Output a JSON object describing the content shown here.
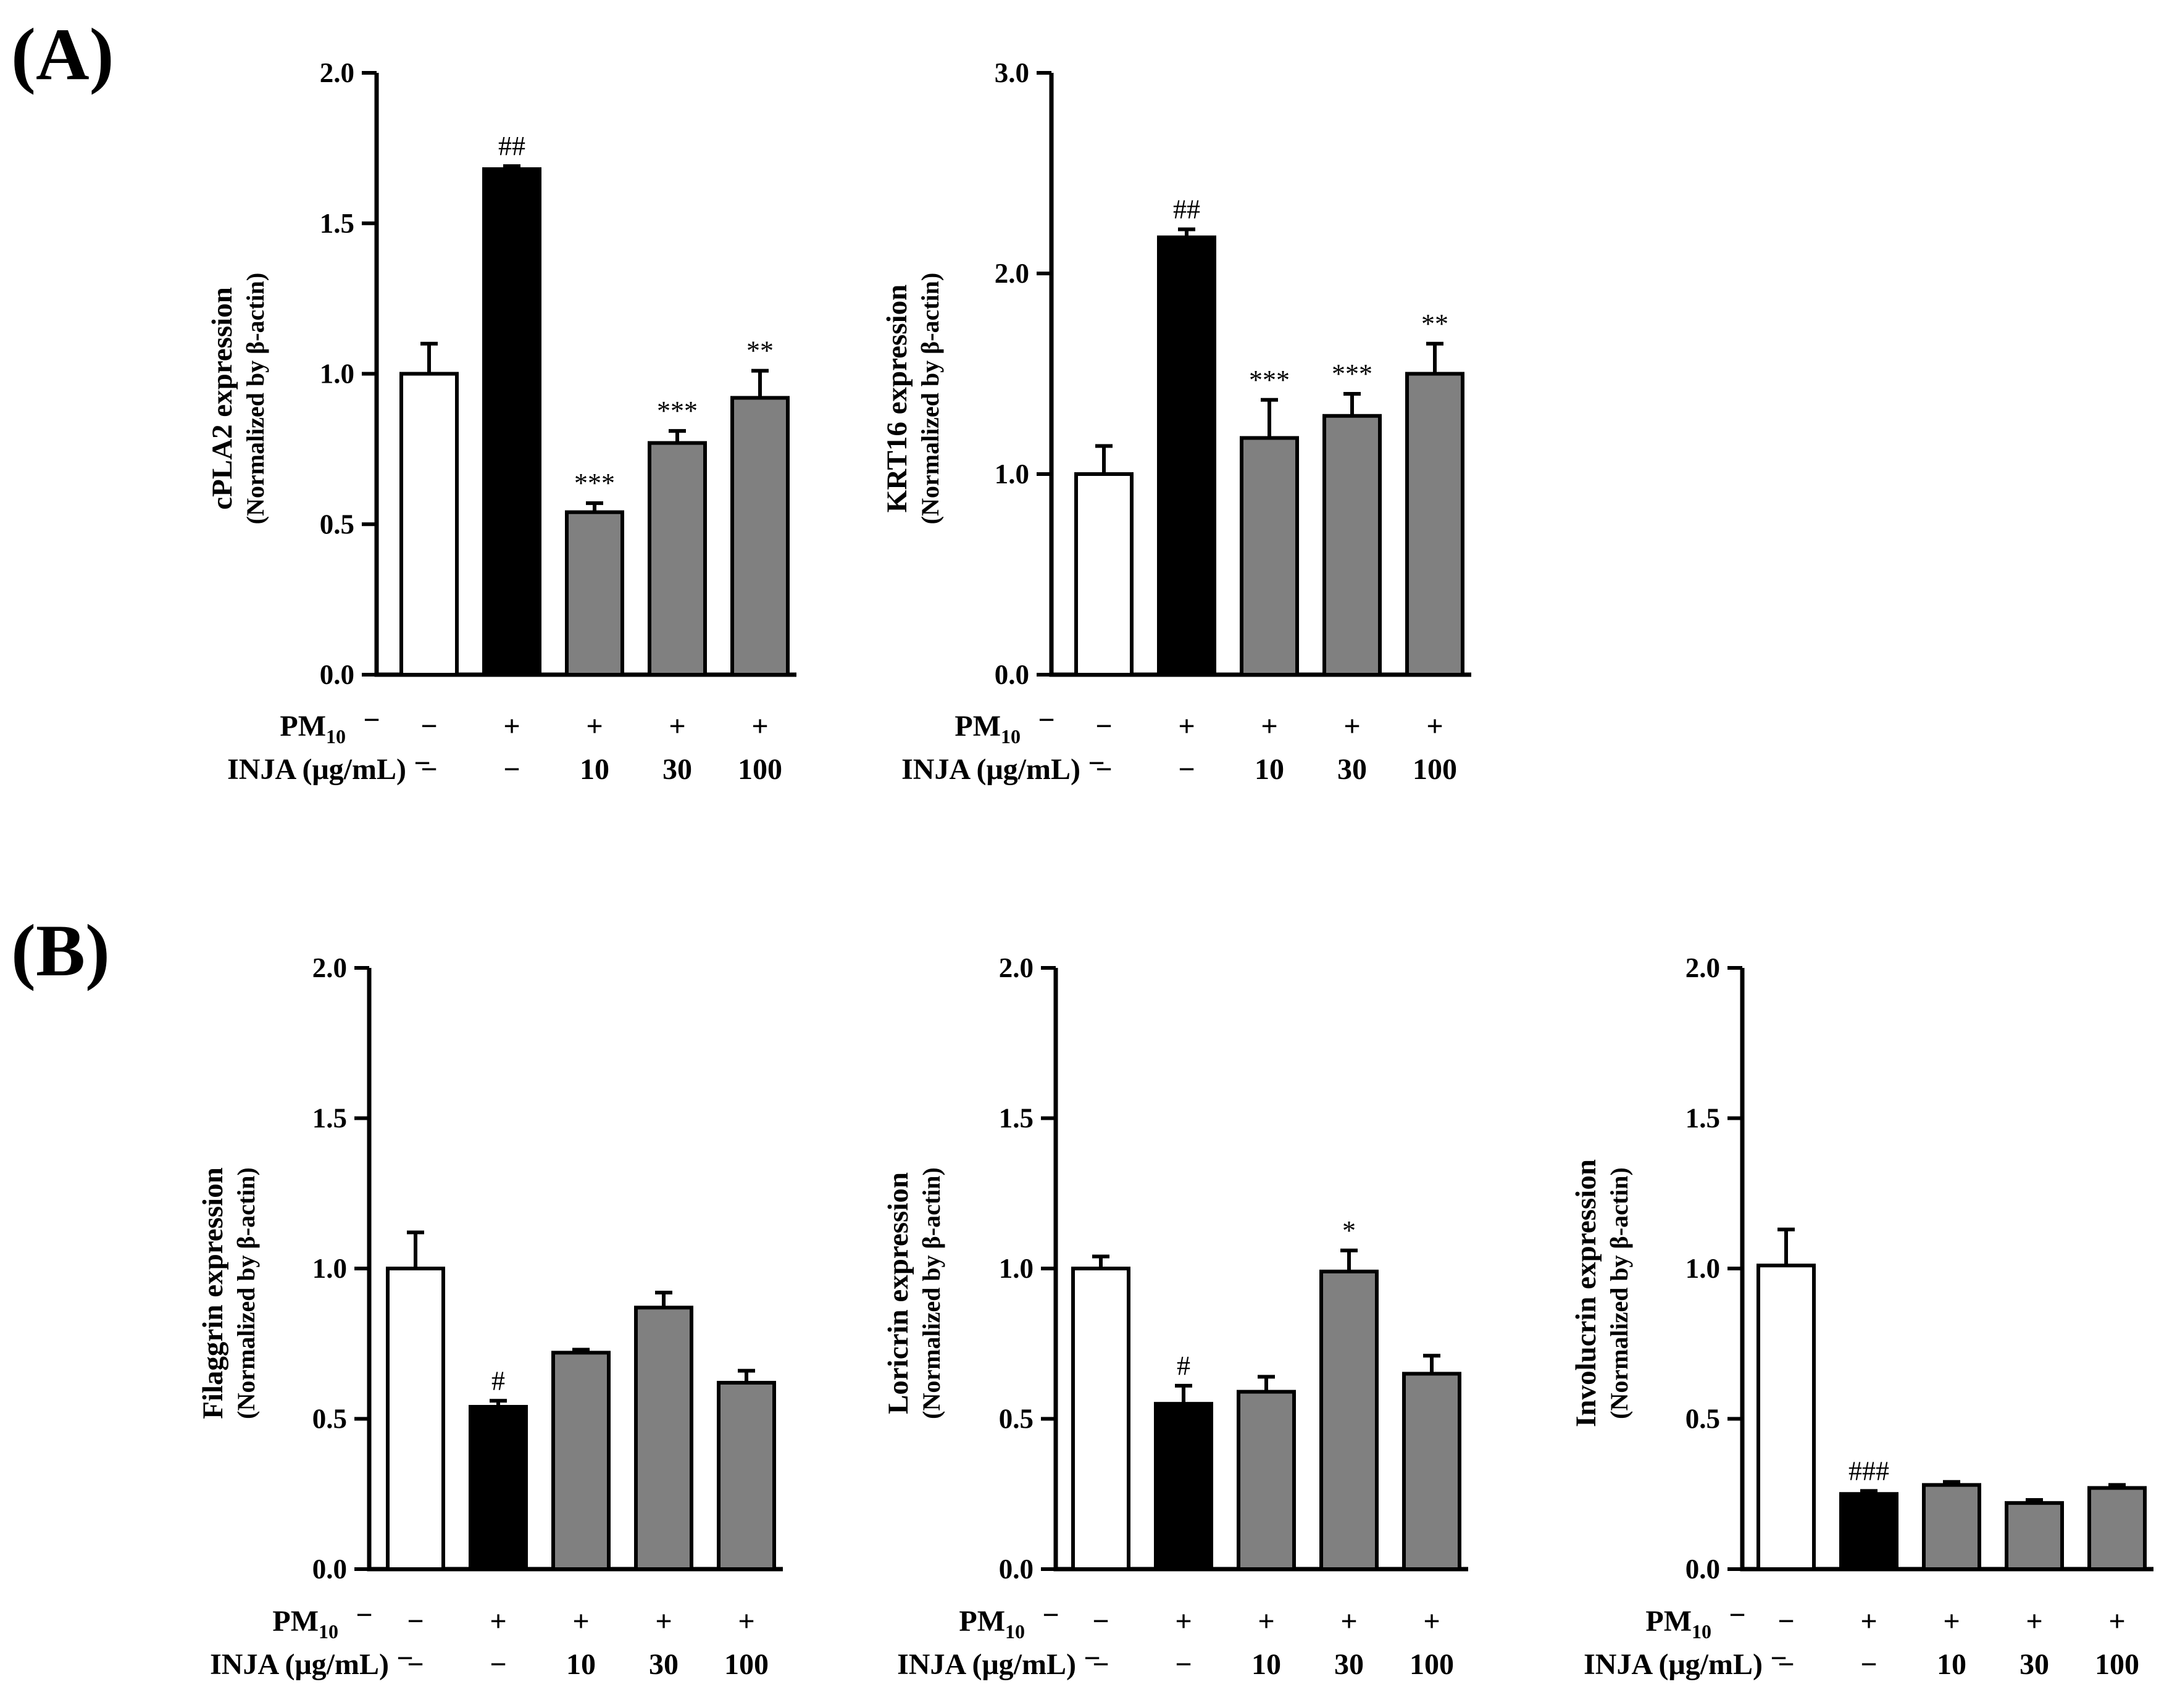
{
  "panels": [
    {
      "label": "(A)"
    },
    {
      "label": "(B)"
    }
  ],
  "conditions": {
    "pm_label": "PM",
    "pm_subscript": "10",
    "injа_label": "INJA (μg/mL)",
    "inja_label": "INJA (μg/mL)",
    "pm_values": [
      "−",
      "+",
      "+",
      "+",
      "+"
    ],
    "inja_values": [
      "−",
      "−",
      "10",
      "30",
      "100"
    ],
    "dash": "−"
  },
  "colors": {
    "control": "#ffffff",
    "pm_only": "#000000",
    "inja": "#808080",
    "axis": "#000000"
  },
  "chart_data": [
    {
      "type": "bar",
      "panel": "(A)",
      "title": "",
      "ylabel": "cPLA2  expression",
      "ylabel2": "(Normalized by β-actin)",
      "ylim": [
        0,
        2.0
      ],
      "yticks": [
        "0.0",
        "0.5",
        "1.0",
        "1.5",
        "2.0"
      ],
      "categories": [
        "control",
        "PM10",
        "PM10 + INJA 10",
        "PM10 + INJA 30",
        "PM10 + INJA 100"
      ],
      "values": [
        1.0,
        1.68,
        0.54,
        0.77,
        0.92
      ],
      "errors": [
        0.1,
        0.01,
        0.03,
        0.04,
        0.09
      ],
      "annotations": [
        "",
        "##",
        "***",
        "***",
        "**"
      ]
    },
    {
      "type": "bar",
      "panel": "(A)",
      "title": "",
      "ylabel": "KRT16  expression",
      "ylabel2": "(Normalized by β-actin)",
      "ylim": [
        0,
        3.0
      ],
      "yticks": [
        "0.0",
        "1.0",
        "2.0",
        "3.0"
      ],
      "categories": [
        "control",
        "PM10",
        "PM10 + INJA 10",
        "PM10 + INJA 30",
        "PM10 + INJA 100"
      ],
      "values": [
        1.0,
        2.18,
        1.18,
        1.29,
        1.5
      ],
      "errors": [
        0.14,
        0.04,
        0.19,
        0.11,
        0.15
      ],
      "annotations": [
        "",
        "##",
        "***",
        "***",
        "**"
      ]
    },
    {
      "type": "bar",
      "panel": "(B)",
      "title": "",
      "ylabel": "Filaggrin  expression",
      "ylabel2": "(Normalized by β-actin)",
      "ylim": [
        0,
        2.0
      ],
      "yticks": [
        "0.0",
        "0.5",
        "1.0",
        "1.5",
        "2.0"
      ],
      "categories": [
        "control",
        "PM10",
        "PM10 + INJA 10",
        "PM10 + INJA 30",
        "PM10 + INJA 100"
      ],
      "values": [
        1.0,
        0.54,
        0.72,
        0.87,
        0.62
      ],
      "errors": [
        0.12,
        0.02,
        0.01,
        0.05,
        0.04
      ],
      "annotations": [
        "",
        "#",
        "",
        "",
        ""
      ]
    },
    {
      "type": "bar",
      "panel": "(B)",
      "title": "",
      "ylabel": "Loricrin  expression",
      "ylabel2": "(Normalized by β-actin)",
      "ylim": [
        0,
        2.0
      ],
      "yticks": [
        "0.0",
        "0.5",
        "1.0",
        "1.5",
        "2.0"
      ],
      "categories": [
        "control",
        "PM10",
        "PM10 + INJA 10",
        "PM10 + INJA 30",
        "PM10 + INJA 100"
      ],
      "values": [
        1.0,
        0.55,
        0.59,
        0.99,
        0.65
      ],
      "errors": [
        0.04,
        0.06,
        0.05,
        0.07,
        0.06
      ],
      "annotations": [
        "",
        "#",
        "",
        "*",
        ""
      ]
    },
    {
      "type": "bar",
      "panel": "(B)",
      "title": "",
      "ylabel": "Involucrin  expression",
      "ylabel2": "(Normalized by β-actin)",
      "ylim": [
        0,
        2.0
      ],
      "yticks": [
        "0.0",
        "0.5",
        "1.0",
        "1.5",
        "2.0"
      ],
      "categories": [
        "control",
        "PM10",
        "PM10 + INJA 10",
        "PM10 + INJA 30",
        "PM10 + INJA 100"
      ],
      "values": [
        1.01,
        0.25,
        0.28,
        0.22,
        0.27
      ],
      "errors": [
        0.12,
        0.01,
        0.01,
        0.01,
        0.01
      ],
      "annotations": [
        "",
        "###",
        "",
        "",
        ""
      ]
    }
  ]
}
